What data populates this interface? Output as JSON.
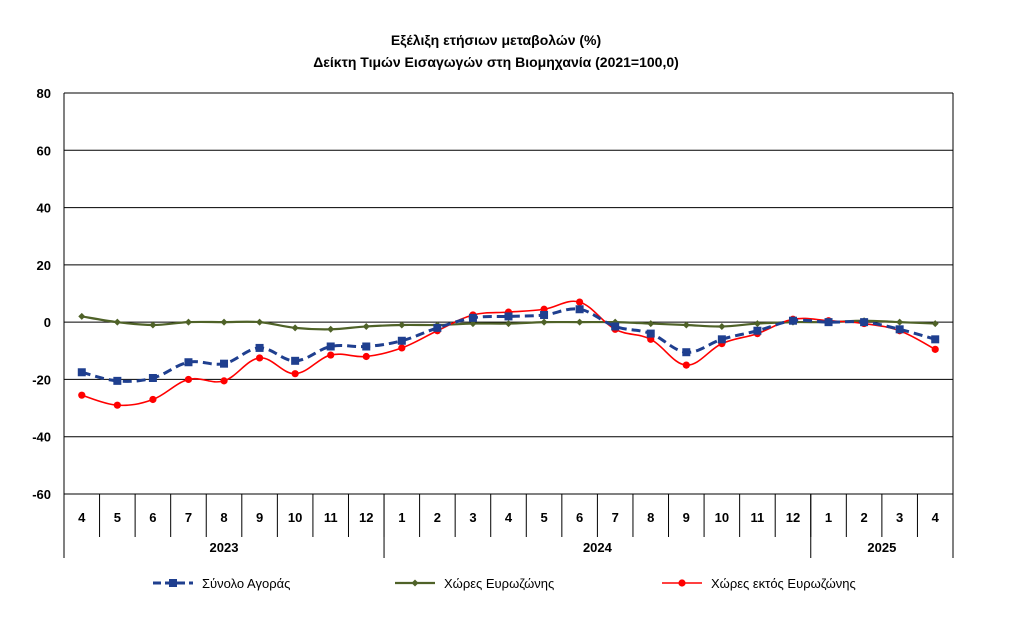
{
  "chart_data": {
    "type": "line",
    "title": "Εξέλιξη ετήσιων μεταβολών (%)",
    "subtitle": "Δείκτη Τιμών Εισαγωγών στη Βιομηχανία (2021=100,0)",
    "categories": [
      "4",
      "5",
      "6",
      "7",
      "8",
      "9",
      "10",
      "11",
      "12",
      "1",
      "2",
      "3",
      "4",
      "5",
      "6",
      "7",
      "8",
      "9",
      "10",
      "11",
      "12",
      "1",
      "2",
      "3",
      "4"
    ],
    "years": [
      {
        "label": "2023",
        "start": 0,
        "end": 8
      },
      {
        "label": "2024",
        "start": 9,
        "end": 20
      },
      {
        "label": "2025",
        "start": 21,
        "end": 24
      }
    ],
    "ylim": [
      -60,
      80
    ],
    "yticks": [
      "80",
      "60",
      "40",
      "20",
      "0",
      "-20",
      "-40",
      "-60"
    ],
    "grid": true,
    "legend_position": "bottom",
    "series": [
      {
        "name": "Σύνολο Αγοράς",
        "color": "#1f3f8f",
        "style": "dashed-square",
        "values": [
          -17.5,
          -20.5,
          -19.5,
          -14,
          -14.5,
          -9,
          -13.5,
          -8.5,
          -8.5,
          -6.5,
          -2,
          1.5,
          2,
          2.5,
          4.5,
          -1.5,
          -4,
          -10.5,
          -6,
          -3,
          0.5,
          0,
          0,
          -2.5,
          -6
        ]
      },
      {
        "name": "Χώρες Ευρωζώνης",
        "color": "#4f6228",
        "style": "solid-diamond",
        "values": [
          2,
          0,
          -1,
          0,
          0,
          0,
          -2,
          -2.5,
          -1.5,
          -1,
          -1,
          -0.5,
          -0.5,
          0,
          0,
          0,
          -0.5,
          -1,
          -1.5,
          -0.5,
          0,
          0,
          0.5,
          0,
          -0.5
        ]
      },
      {
        "name": "Χώρες εκτός Ευρωζώνης",
        "color": "#ff0000",
        "style": "solid-circle",
        "values": [
          -25.5,
          -29,
          -27,
          -20,
          -20.5,
          -12.5,
          -18,
          -11.5,
          -12,
          -9,
          -3,
          2.5,
          3.5,
          4.5,
          7,
          -2.5,
          -6,
          -15,
          -7.5,
          -4,
          1,
          0.5,
          -0.5,
          -3,
          -9.5
        ]
      }
    ]
  }
}
